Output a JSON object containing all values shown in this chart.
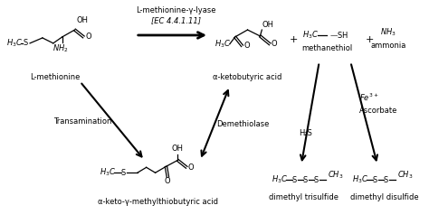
{
  "bg_color": "#ffffff",
  "text_color": "#000000",
  "figsize": [
    4.74,
    2.48
  ],
  "dpi": 100,
  "labels": {
    "L_methionine": "L-methionine",
    "alpha_ketobutyric": "α-ketobutyric acid",
    "methanethiol": "methanethiol",
    "ammonia": "ammonia",
    "transamination": "Transamination",
    "demethiolase": "Demethiolase",
    "ascorbate": "Ascorbate",
    "alpha_keto_methyl": "α-keto-γ-methylthiobutyric acid",
    "dimethyl_trisulfide": "dimethyl trisulfide",
    "dimethyl_disulfide": "dimethyl disulfide",
    "enzyme": "L-methionine-γ-lyase",
    "ec": "[EC 4.4.1.11]",
    "h2s": "H₂S",
    "fe3": "Fe³⁺",
    "plus": "+"
  }
}
